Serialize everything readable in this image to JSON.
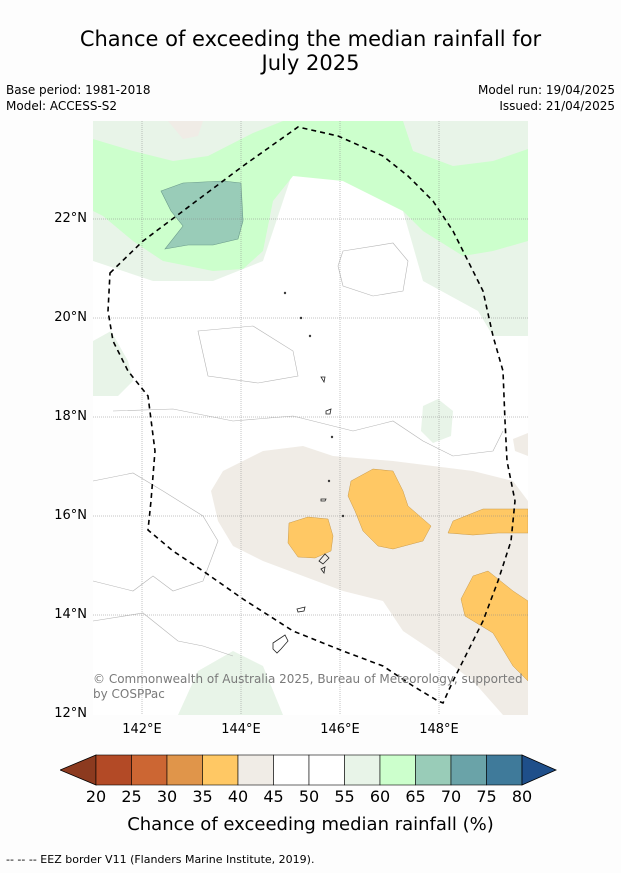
{
  "header": {
    "title_line1": "Chance of exceeding the median rainfall for",
    "title_line2": "July 2025",
    "base_period": "Base period: 1981-2018",
    "model": "Model: ACCESS-S2",
    "model_run": "Model run: 19/04/2025",
    "issued": "Issued: 21/04/2025"
  },
  "map": {
    "lat_labels": [
      "22°N",
      "20°N",
      "18°N",
      "16°N",
      "14°N",
      "12°N"
    ],
    "lon_labels": [
      "142°E",
      "144°E",
      "146°E",
      "148°E"
    ],
    "copyright": "© Commonwealth of Australia 2025, Bureau of Meteorology, supported by COSPPac"
  },
  "colorbar": {
    "ticks": [
      "20",
      "25",
      "30",
      "35",
      "40",
      "45",
      "50",
      "55",
      "60",
      "65",
      "70",
      "75",
      "80"
    ],
    "colors": [
      "#8c3a1f",
      "#b34a26",
      "#cc6633",
      "#e0954a",
      "#ffc864",
      "#f0ece6",
      "#ffffff",
      "#ffffff",
      "#e8f4e8",
      "#ccffcc",
      "#99ccb8",
      "#6aa3a8",
      "#3f7a9a",
      "#1f4f8a"
    ],
    "label": "Chance of exceeding median rainfall (%)"
  },
  "footer": {
    "legend_text": "--  --  -- EEZ border V11 (Flanders Marine Institute, 2019)."
  }
}
